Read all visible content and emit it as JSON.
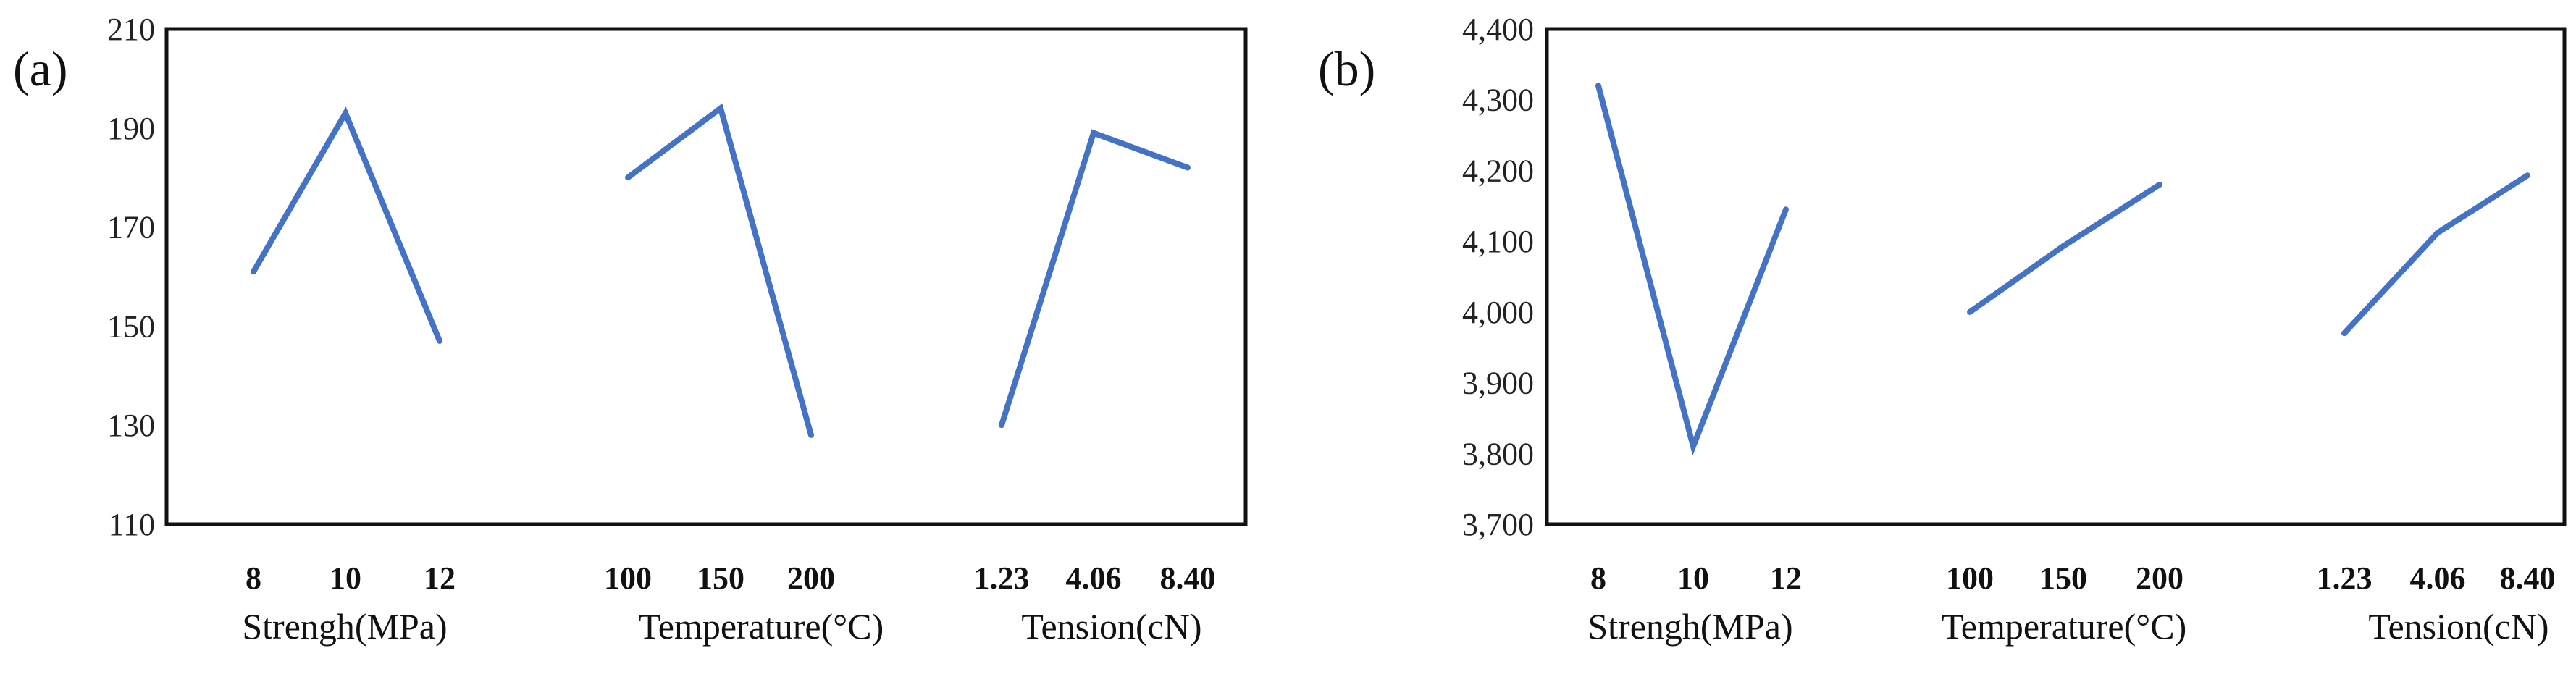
{
  "chart_data": [
    {
      "panel_label": "(a)",
      "type": "line",
      "ylim": [
        110,
        210
      ],
      "yticks": [
        "110",
        "130",
        "150",
        "170",
        "190",
        "210"
      ],
      "yticks_values": [
        110,
        130,
        150,
        170,
        190,
        210
      ],
      "line_color": "#4472C4",
      "groups": [
        {
          "label": "Strengh(MPa)",
          "categories": [
            "8",
            "10",
            "12"
          ],
          "values": [
            161,
            193,
            147
          ]
        },
        {
          "label": "Temperature(°C)",
          "categories": [
            "100",
            "150",
            "200"
          ],
          "values": [
            180,
            194,
            128
          ]
        },
        {
          "label": "Tension(cN)",
          "categories": [
            "1.23",
            "4.06",
            "8.40"
          ],
          "values": [
            130,
            189,
            182
          ]
        }
      ]
    },
    {
      "panel_label": "(b)",
      "type": "line",
      "ylim": [
        3700,
        4400
      ],
      "yticks": [
        "3,700",
        "3,800",
        "3,900",
        "4,000",
        "4,100",
        "4,200",
        "4,300",
        "4,400"
      ],
      "yticks_values": [
        3700,
        3800,
        3900,
        4000,
        4100,
        4200,
        4300,
        4400
      ],
      "line_color": "#4472C4",
      "groups": [
        {
          "label": "Strengh(MPa)",
          "categories": [
            "8",
            "10",
            "12"
          ],
          "values": [
            4320,
            3810,
            4145
          ]
        },
        {
          "label": "Temperature(°C)",
          "categories": [
            "100",
            "150",
            "200"
          ],
          "values": [
            4000,
            4093,
            4180
          ]
        },
        {
          "label": "Tension(cN)",
          "categories": [
            "1.23",
            "4.06",
            "8.40"
          ],
          "values": [
            3970,
            4112,
            4193
          ]
        }
      ]
    }
  ]
}
